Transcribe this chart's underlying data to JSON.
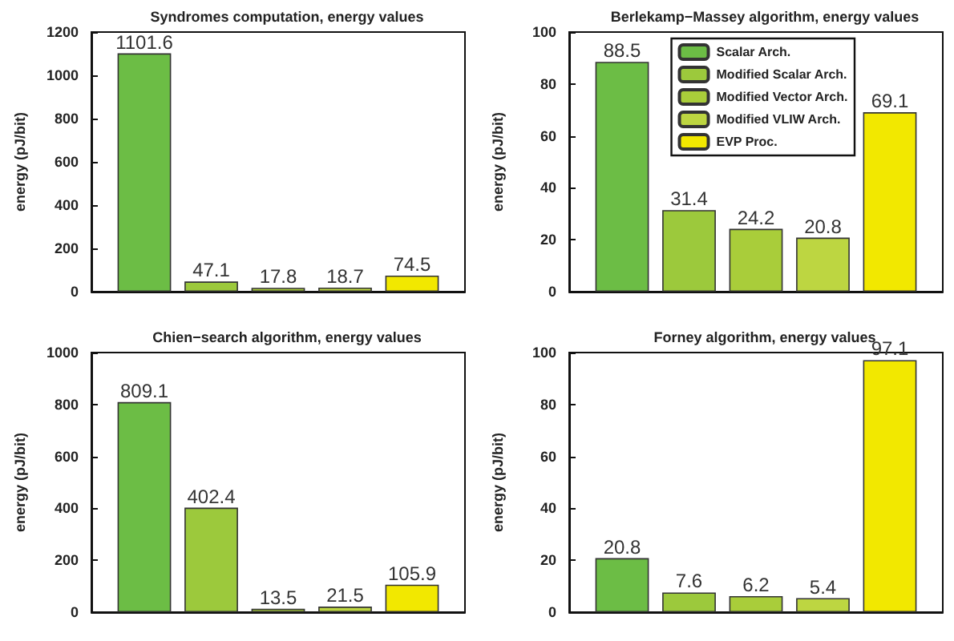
{
  "chart_data": [
    {
      "type": "bar",
      "title": "Syndromes computation, energy values",
      "ylabel": "energy (pJ/bit)",
      "categories": [
        null
      ],
      "series": [
        {
          "color": "#6cbd45",
          "values": [
            1101.6
          ]
        },
        {
          "color": "#9cc93c",
          "values": [
            47.1
          ]
        },
        {
          "color": "#a9cd3a",
          "values": [
            17.8
          ]
        },
        {
          "color": "#bdd641",
          "values": [
            18.7
          ]
        },
        {
          "color": "#f2e800",
          "values": [
            74.5
          ]
        }
      ],
      "ylim": [
        0,
        1200
      ],
      "yticks": [
        0,
        200,
        400,
        600,
        800,
        1000,
        1200
      ],
      "data_labels": true,
      "grid": false,
      "legend": false
    },
    {
      "type": "bar",
      "title": "Berlekamp−Massey algorithm, energy values",
      "ylabel": "energy (pJ/bit)",
      "categories": [
        null
      ],
      "series": [
        {
          "name": "Scalar Arch.",
          "color": "#6cbd45",
          "values": [
            88.5
          ]
        },
        {
          "name": "Modified Scalar Arch.",
          "color": "#9cc93c",
          "values": [
            31.4
          ]
        },
        {
          "name": "Modified Vector Arch.",
          "color": "#a9cd3a",
          "values": [
            24.2
          ]
        },
        {
          "name": "Modified VLIW Arch.",
          "color": "#bdd641",
          "values": [
            20.8
          ]
        },
        {
          "name": "EVP Proc.",
          "color": "#f2e800",
          "values": [
            69.1
          ]
        }
      ],
      "ylim": [
        0,
        100
      ],
      "yticks": [
        0,
        20,
        40,
        60,
        80,
        100
      ],
      "data_labels": true,
      "grid": false,
      "legend": "top right"
    },
    {
      "type": "bar",
      "title": "Chien−search algorithm, energy values",
      "ylabel": "energy (pJ/bit)",
      "categories": [
        null
      ],
      "series": [
        {
          "color": "#6cbd45",
          "values": [
            809.1
          ]
        },
        {
          "color": "#9cc93c",
          "values": [
            402.4
          ]
        },
        {
          "color": "#a9cd3a",
          "values": [
            13.5
          ]
        },
        {
          "color": "#bdd641",
          "values": [
            21.5
          ]
        },
        {
          "color": "#f2e800",
          "values": [
            105.9
          ]
        }
      ],
      "ylim": [
        0,
        1000
      ],
      "yticks": [
        0,
        200,
        400,
        600,
        800,
        1000
      ],
      "data_labels": true,
      "grid": false,
      "legend": false
    },
    {
      "type": "bar",
      "title": "Forney algorithm, energy values",
      "ylabel": "energy (pJ/bit)",
      "categories": [
        null
      ],
      "series": [
        {
          "color": "#6cbd45",
          "values": [
            20.8
          ]
        },
        {
          "color": "#9cc93c",
          "values": [
            7.6
          ]
        },
        {
          "color": "#a9cd3a",
          "values": [
            6.2
          ]
        },
        {
          "color": "#bdd641",
          "values": [
            5.4
          ]
        },
        {
          "color": "#f2e800",
          "values": [
            97.1
          ]
        }
      ],
      "ylim": [
        0,
        100
      ],
      "yticks": [
        0,
        20,
        40,
        60,
        80,
        100
      ],
      "data_labels": true,
      "grid": false,
      "legend": false
    }
  ]
}
